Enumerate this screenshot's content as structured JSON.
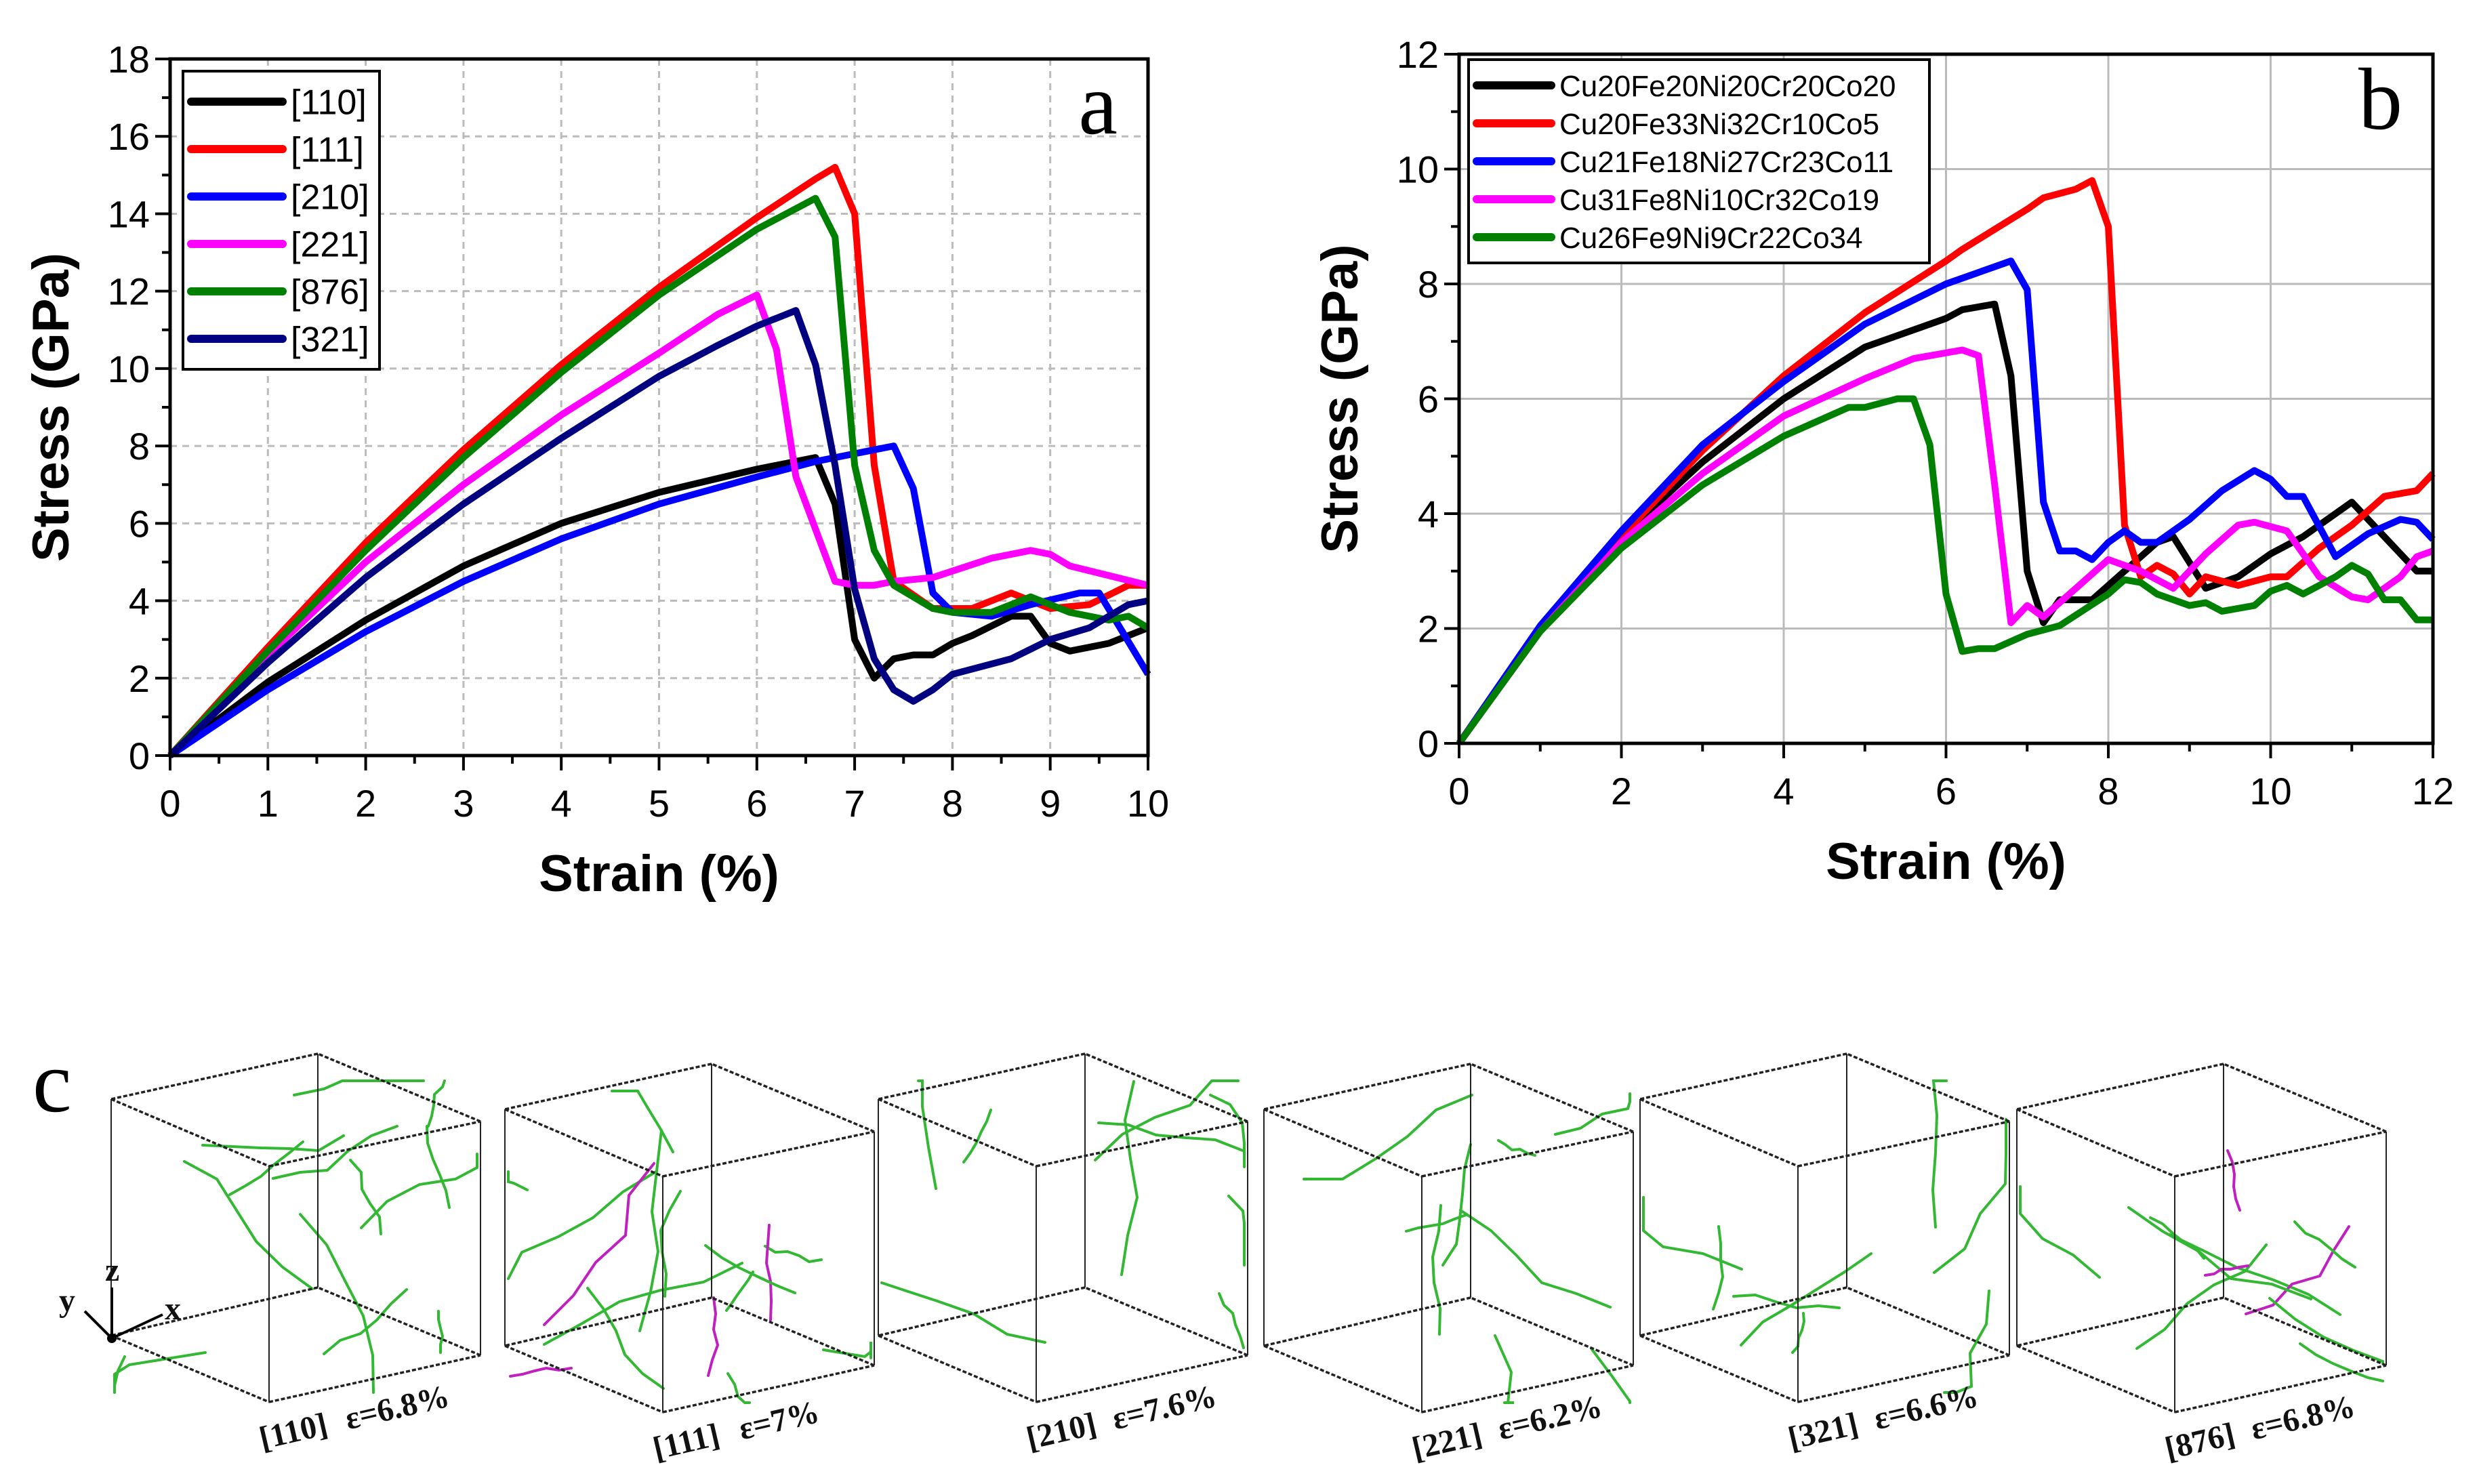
{
  "chart_data": [
    {
      "type": "line",
      "panel_label": "a",
      "xlabel": "Strain (%)",
      "ylabel": "Stress (GPa)",
      "xlim": [
        0,
        10
      ],
      "ylim": [
        0,
        18
      ],
      "xticks": [
        "0",
        "1",
        "2",
        "3",
        "4",
        "5",
        "6",
        "7",
        "8",
        "9",
        "10"
      ],
      "yticks": [
        "0",
        "2",
        "4",
        "6",
        "8",
        "10",
        "12",
        "14",
        "16",
        "18"
      ],
      "grid": true,
      "legend_position": "top-left",
      "series": [
        {
          "name": "[110]",
          "color": "#000000",
          "x": [
            0,
            1,
            2,
            3,
            4,
            5,
            6,
            6.6,
            6.8,
            7,
            7.2,
            7.4,
            7.6,
            7.8,
            8,
            8.2,
            8.6,
            8.8,
            9,
            9.2,
            9.6,
            10
          ],
          "y": [
            0,
            1.9,
            3.5,
            4.9,
            6.0,
            6.8,
            7.4,
            7.7,
            6.5,
            3.0,
            2.0,
            2.5,
            2.6,
            2.6,
            2.9,
            3.1,
            3.6,
            3.6,
            2.9,
            2.7,
            2.9,
            3.3
          ]
        },
        {
          "name": "[111]",
          "color": "#ff0000",
          "x": [
            0,
            1,
            2,
            3,
            4,
            5,
            6,
            6.6,
            6.8,
            7,
            7.2,
            7.4,
            7.8,
            8,
            8.2,
            8.6,
            9,
            9.4,
            9.8,
            10
          ],
          "y": [
            0,
            2.8,
            5.5,
            7.9,
            10.1,
            12.1,
            13.9,
            14.9,
            15.2,
            14.0,
            7.5,
            4.5,
            3.8,
            3.8,
            3.8,
            4.2,
            3.8,
            3.9,
            4.4,
            4.4
          ]
        },
        {
          "name": "[210]",
          "color": "#0000ff",
          "x": [
            0,
            1,
            2,
            3,
            4,
            5,
            6,
            6.6,
            7,
            7.4,
            7.6,
            7.8,
            8,
            8.4,
            8.8,
            9.3,
            9.5,
            10
          ],
          "y": [
            0,
            1.7,
            3.2,
            4.5,
            5.6,
            6.5,
            7.2,
            7.6,
            7.8,
            8.0,
            6.9,
            4.2,
            3.7,
            3.6,
            3.9,
            4.2,
            4.2,
            2.1
          ]
        },
        {
          "name": "[221]",
          "color": "#ff00ff",
          "x": [
            0,
            1,
            2,
            3,
            4,
            5,
            5.6,
            6,
            6.2,
            6.4,
            6.8,
            7,
            7.2,
            7.4,
            7.8,
            8.4,
            8.8,
            9,
            9.2,
            10
          ],
          "y": [
            0,
            2.6,
            5.0,
            7.0,
            8.8,
            10.4,
            11.4,
            11.9,
            10.5,
            7.2,
            4.5,
            4.4,
            4.4,
            4.5,
            4.6,
            5.1,
            5.3,
            5.2,
            4.9,
            4.4
          ]
        },
        {
          "name": "[876]",
          "color": "#008000",
          "x": [
            0,
            1,
            2,
            3,
            4,
            5,
            6,
            6.6,
            6.8,
            7,
            7.2,
            7.4,
            7.8,
            8,
            8.4,
            8.8,
            9.2,
            9.6,
            9.8,
            10
          ],
          "y": [
            0,
            2.7,
            5.3,
            7.7,
            9.9,
            11.9,
            13.6,
            14.4,
            13.4,
            7.5,
            5.3,
            4.4,
            3.8,
            3.7,
            3.7,
            4.1,
            3.7,
            3.5,
            3.6,
            3.3
          ]
        },
        {
          "name": "[321]",
          "color": "#000080",
          "x": [
            0,
            1,
            2,
            3,
            4,
            5,
            5.6,
            6,
            6.4,
            6.6,
            6.8,
            7,
            7.2,
            7.4,
            7.6,
            7.8,
            8,
            8.6,
            9,
            9.4,
            9.8,
            10
          ],
          "y": [
            0,
            2.4,
            4.6,
            6.5,
            8.2,
            9.8,
            10.6,
            11.1,
            11.5,
            10.1,
            7.5,
            4.3,
            2.5,
            1.7,
            1.4,
            1.7,
            2.1,
            2.5,
            3.0,
            3.3,
            3.9,
            4.0
          ]
        }
      ]
    },
    {
      "type": "line",
      "panel_label": "b",
      "xlabel": "Strain (%)",
      "ylabel": "Stress (GPa)",
      "xlim": [
        0,
        12
      ],
      "ylim": [
        0,
        12
      ],
      "xticks": [
        "0",
        "2",
        "4",
        "6",
        "8",
        "10",
        "12"
      ],
      "yticks": [
        "0",
        "2",
        "4",
        "6",
        "8",
        "10",
        "12"
      ],
      "grid": true,
      "legend_position": "top-left",
      "series": [
        {
          "name": "Cu20Fe20Ni20Cr20Co20",
          "color": "#000000",
          "x": [
            0,
            1,
            2,
            3,
            4,
            5,
            6,
            6.2,
            6.6,
            6.8,
            7,
            7.2,
            7.4,
            7.8,
            8.2,
            8.6,
            8.8,
            9.2,
            9.6,
            10,
            10.4,
            11,
            11.4,
            11.8,
            12
          ],
          "y": [
            0,
            2,
            3.6,
            4.9,
            6.0,
            6.9,
            7.4,
            7.55,
            7.65,
            6.4,
            3.0,
            2.1,
            2.5,
            2.5,
            3.0,
            3.5,
            3.6,
            2.7,
            2.9,
            3.3,
            3.6,
            4.2,
            3.6,
            3.0,
            3.0
          ]
        },
        {
          "name": "Cu20Fe33Ni32Cr10Co5",
          "color": "#ff0000",
          "x": [
            0,
            1,
            2,
            3,
            4,
            5,
            6,
            6.2,
            7,
            7.2,
            7.6,
            7.8,
            8,
            8.2,
            8.4,
            8.6,
            8.8,
            9,
            9.2,
            9.6,
            10,
            10.2,
            10.6,
            11,
            11.4,
            11.8,
            12
          ],
          "y": [
            0,
            2,
            3.6,
            5.1,
            6.4,
            7.5,
            8.4,
            8.6,
            9.3,
            9.5,
            9.65,
            9.8,
            9.0,
            3.8,
            2.9,
            3.1,
            2.95,
            2.6,
            2.9,
            2.75,
            2.9,
            2.9,
            3.4,
            3.8,
            4.3,
            4.4,
            4.7
          ]
        },
        {
          "name": "Cu21Fe18Ni27Cr23Co11",
          "color": "#0000ff",
          "x": [
            0,
            1,
            2,
            3,
            4,
            5,
            6,
            6.6,
            6.8,
            7,
            7.2,
            7.4,
            7.6,
            7.8,
            8,
            8.2,
            8.4,
            8.6,
            9,
            9.4,
            9.8,
            10,
            10.2,
            10.4,
            10.8,
            11.2,
            11.6,
            11.8,
            12
          ],
          "y": [
            0,
            2.05,
            3.7,
            5.2,
            6.3,
            7.3,
            8.0,
            8.3,
            8.4,
            7.9,
            4.2,
            3.35,
            3.35,
            3.2,
            3.5,
            3.7,
            3.5,
            3.5,
            3.9,
            4.4,
            4.75,
            4.6,
            4.3,
            4.3,
            3.25,
            3.65,
            3.9,
            3.85,
            3.55
          ]
        },
        {
          "name": "Cu31Fe8Ni10Cr32Co19",
          "color": "#ff00ff",
          "x": [
            0,
            1,
            2,
            3,
            4,
            5,
            5.6,
            6.2,
            6.4,
            6.6,
            6.8,
            7,
            7.2,
            7.6,
            8,
            8.4,
            8.8,
            9.2,
            9.6,
            9.8,
            10.2,
            10.6,
            11,
            11.2,
            11.6,
            11.8,
            12
          ],
          "y": [
            0,
            1.95,
            3.5,
            4.7,
            5.7,
            6.35,
            6.7,
            6.85,
            6.75,
            4.5,
            2.1,
            2.4,
            2.2,
            2.7,
            3.2,
            3.0,
            2.7,
            3.3,
            3.8,
            3.85,
            3.7,
            2.9,
            2.55,
            2.5,
            2.9,
            3.25,
            3.35
          ]
        },
        {
          "name": "Cu26Fe9Ni9Cr22Co34",
          "color": "#008000",
          "x": [
            0,
            1,
            2,
            3,
            4,
            4.8,
            5,
            5.4,
            5.6,
            5.8,
            6,
            6.2,
            6.4,
            6.6,
            7,
            7.4,
            8,
            8.2,
            8.4,
            8.6,
            9,
            9.2,
            9.4,
            9.8,
            10,
            10.2,
            10.4,
            10.8,
            11,
            11.2,
            11.4,
            11.6,
            11.8,
            12
          ],
          "y": [
            0,
            1.95,
            3.4,
            4.5,
            5.35,
            5.85,
            5.85,
            6.0,
            6.0,
            5.2,
            2.6,
            1.6,
            1.65,
            1.65,
            1.9,
            2.05,
            2.6,
            2.85,
            2.8,
            2.6,
            2.4,
            2.45,
            2.3,
            2.4,
            2.65,
            2.75,
            2.6,
            2.9,
            3.1,
            2.95,
            2.5,
            2.5,
            2.15,
            2.15
          ]
        }
      ]
    }
  ],
  "panel_c": {
    "panel_label": "c",
    "axes": {
      "z": "z",
      "y": "y",
      "x": "x"
    },
    "snapshots": [
      {
        "orientation": "[110]",
        "strain": "ε=6.8%"
      },
      {
        "orientation": "[111]",
        "strain": "ε=7%"
      },
      {
        "orientation": "[210]",
        "strain": "ε=7.6%"
      },
      {
        "orientation": "[221]",
        "strain": "ε=6.2%"
      },
      {
        "orientation": "[321]",
        "strain": "ε=6.6%"
      },
      {
        "orientation": "[876]",
        "strain": "ε=6.8%"
      }
    ],
    "colors": {
      "dislocation": "#33b833",
      "other": "#c020c0"
    }
  }
}
